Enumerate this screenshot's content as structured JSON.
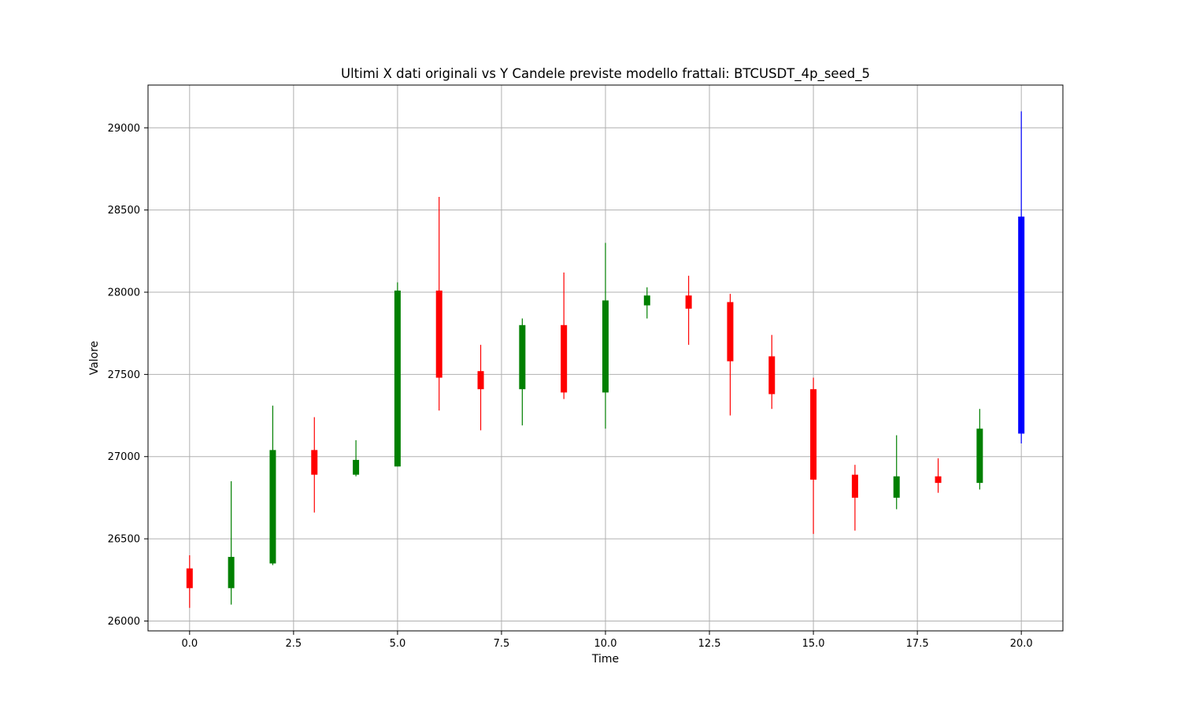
{
  "chart_data": {
    "type": "candlestick",
    "title": "Ultimi X dati originali vs Y Candele previste modello frattali: BTCUSDT_4p_seed_5",
    "xlabel": "Time",
    "ylabel": "Valore",
    "xlim": [
      -1,
      21
    ],
    "ylim": [
      25940,
      29260
    ],
    "xticks": [
      0,
      2.5,
      5,
      7.5,
      10,
      12.5,
      15,
      17.5,
      20
    ],
    "xtick_labels": [
      "0.0",
      "2.5",
      "5.0",
      "7.5",
      "10.0",
      "12.5",
      "15.0",
      "17.5",
      "20.0"
    ],
    "yticks": [
      26000,
      26500,
      27000,
      27500,
      28000,
      28500,
      29000
    ],
    "ytick_labels": [
      "26000",
      "26500",
      "27000",
      "27500",
      "28000",
      "28500",
      "29000"
    ],
    "grid": true,
    "colors": {
      "up": "#008000",
      "down": "#ff0000",
      "predicted": "#0000ff",
      "grid": "#b0b0b0"
    },
    "candles": [
      {
        "t": 0,
        "open": 26320,
        "high": 26400,
        "low": 26080,
        "close": 26200,
        "kind": "down"
      },
      {
        "t": 1,
        "open": 26200,
        "high": 26850,
        "low": 26100,
        "close": 26390,
        "kind": "up"
      },
      {
        "t": 2,
        "open": 26350,
        "high": 27310,
        "low": 26340,
        "close": 27040,
        "kind": "up"
      },
      {
        "t": 3,
        "open": 27040,
        "high": 27240,
        "low": 26660,
        "close": 26890,
        "kind": "down"
      },
      {
        "t": 4,
        "open": 26890,
        "high": 27100,
        "low": 26880,
        "close": 26980,
        "kind": "up"
      },
      {
        "t": 5,
        "open": 26940,
        "high": 28060,
        "low": 26940,
        "close": 28010,
        "kind": "up"
      },
      {
        "t": 6,
        "open": 28010,
        "high": 28580,
        "low": 27280,
        "close": 27480,
        "kind": "down"
      },
      {
        "t": 7,
        "open": 27520,
        "high": 27680,
        "low": 27160,
        "close": 27410,
        "kind": "down"
      },
      {
        "t": 8,
        "open": 27410,
        "high": 27840,
        "low": 27190,
        "close": 27800,
        "kind": "up"
      },
      {
        "t": 9,
        "open": 27800,
        "high": 28120,
        "low": 27350,
        "close": 27390,
        "kind": "down"
      },
      {
        "t": 10,
        "open": 27390,
        "high": 28300,
        "low": 27170,
        "close": 27950,
        "kind": "up"
      },
      {
        "t": 11,
        "open": 27920,
        "high": 28030,
        "low": 27840,
        "close": 27980,
        "kind": "up"
      },
      {
        "t": 12,
        "open": 27980,
        "high": 28100,
        "low": 27680,
        "close": 27900,
        "kind": "down"
      },
      {
        "t": 13,
        "open": 27940,
        "high": 27990,
        "low": 27250,
        "close": 27580,
        "kind": "down"
      },
      {
        "t": 14,
        "open": 27610,
        "high": 27740,
        "low": 27290,
        "close": 27380,
        "kind": "down"
      },
      {
        "t": 15,
        "open": 27410,
        "high": 27480,
        "low": 26530,
        "close": 26860,
        "kind": "down"
      },
      {
        "t": 16,
        "open": 26890,
        "high": 26950,
        "low": 26550,
        "close": 26750,
        "kind": "down"
      },
      {
        "t": 17,
        "open": 26750,
        "high": 27130,
        "low": 26680,
        "close": 26880,
        "kind": "up"
      },
      {
        "t": 18,
        "open": 26880,
        "high": 26990,
        "low": 26780,
        "close": 26840,
        "kind": "down"
      },
      {
        "t": 19,
        "open": 26840,
        "high": 27290,
        "low": 26800,
        "close": 27170,
        "kind": "up"
      },
      {
        "t": 20,
        "open": 27140,
        "high": 29100,
        "low": 27080,
        "close": 28460,
        "kind": "predicted"
      }
    ]
  }
}
